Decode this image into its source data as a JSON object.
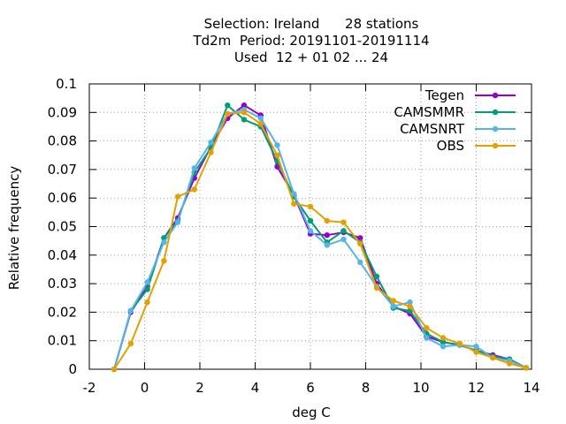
{
  "chart_data": {
    "type": "line",
    "title_lines": [
      "Selection: Ireland      28 stations",
      "Td2m  Period: 20191101-20191114",
      "Used  12 + 01 02 ... 24"
    ],
    "xlabel": "deg C",
    "ylabel": "Relative frequency",
    "xlim": [
      -2,
      14
    ],
    "ylim": [
      0,
      0.1
    ],
    "xticks": [
      -2,
      0,
      2,
      4,
      6,
      8,
      10,
      12,
      14
    ],
    "yticks": [
      0,
      0.01,
      0.02,
      0.03,
      0.04,
      0.05,
      0.06,
      0.07,
      0.08,
      0.09,
      0.1
    ],
    "xtick_labels": [
      "-2",
      "0",
      "2",
      "4",
      "6",
      "8",
      "10",
      "12",
      "14"
    ],
    "ytick_labels": [
      "0",
      "0.01",
      "0.02",
      "0.03",
      "0.04",
      "0.05",
      "0.06",
      "0.07",
      "0.08",
      "0.09",
      "0.1"
    ],
    "grid": true,
    "legend_position": "top-right",
    "x": [
      -1.1,
      -0.5,
      0.1,
      0.7,
      1.2,
      1.8,
      2.4,
      3.0,
      3.6,
      4.2,
      4.8,
      5.4,
      6.0,
      6.6,
      7.2,
      7.8,
      8.4,
      9.0,
      9.6,
      10.2,
      10.8,
      11.4,
      12.0,
      12.6,
      13.2,
      13.8
    ],
    "series": [
      {
        "name": "Tegen",
        "color": "#9400d3",
        "values": [
          0.0,
          0.02,
          0.029,
          0.046,
          0.053,
          0.067,
          0.078,
          0.088,
          0.0925,
          0.089,
          0.071,
          0.061,
          0.0475,
          0.047,
          0.048,
          0.046,
          0.03,
          0.022,
          0.0195,
          0.0115,
          0.0095,
          0.0085,
          0.0065,
          0.005,
          0.0035,
          0.0005
        ]
      },
      {
        "name": "CAMSMMR",
        "color": "#009e73",
        "values": [
          0.0,
          0.0205,
          0.028,
          0.046,
          0.052,
          0.069,
          0.0775,
          0.0925,
          0.0875,
          0.085,
          0.073,
          0.0605,
          0.052,
          0.0445,
          0.0485,
          0.0445,
          0.0325,
          0.0215,
          0.0205,
          0.0125,
          0.0095,
          0.0085,
          0.0065,
          0.0045,
          0.0035,
          0.0005
        ]
      },
      {
        "name": "CAMSNRT",
        "color": "#56b4e9",
        "values": [
          0.0,
          0.0205,
          0.0305,
          0.0445,
          0.0515,
          0.0705,
          0.0795,
          0.0895,
          0.091,
          0.088,
          0.0785,
          0.0615,
          0.0485,
          0.0435,
          0.0455,
          0.0375,
          0.029,
          0.022,
          0.0235,
          0.011,
          0.008,
          0.0085,
          0.008,
          0.004,
          0.003,
          0.0005
        ]
      },
      {
        "name": "OBS",
        "color": "#e69f00",
        "values": [
          0.0,
          0.009,
          0.0235,
          0.038,
          0.0605,
          0.063,
          0.076,
          0.0895,
          0.09,
          0.086,
          0.075,
          0.058,
          0.057,
          0.052,
          0.0515,
          0.044,
          0.0285,
          0.024,
          0.022,
          0.0145,
          0.011,
          0.009,
          0.006,
          0.004,
          0.002,
          0.0005
        ]
      }
    ]
  }
}
